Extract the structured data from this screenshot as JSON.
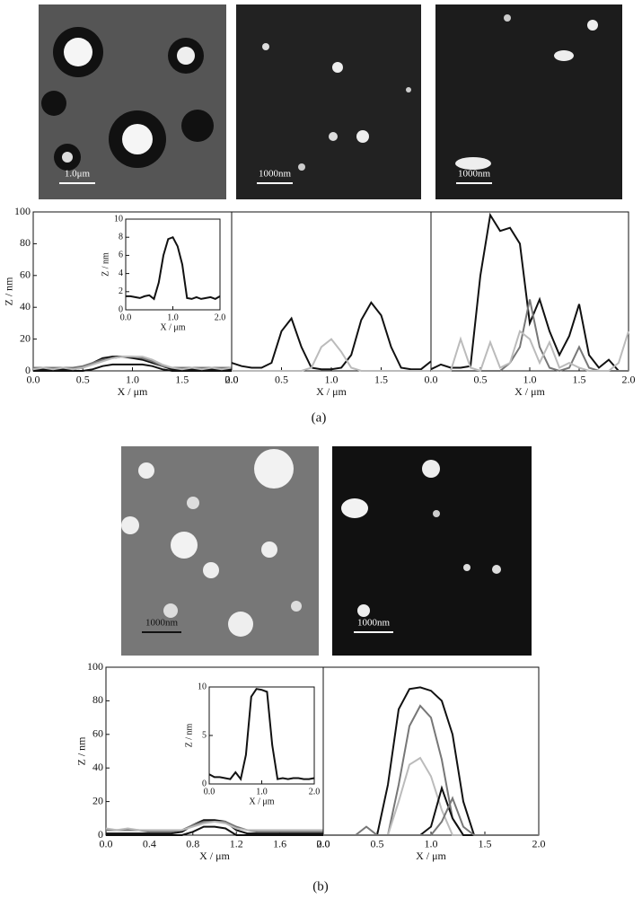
{
  "panel_labels": [
    "(a)",
    "(b)"
  ],
  "images": [
    {
      "scale_bar": "1.0μm"
    },
    {
      "scale_bar": "1000nm"
    },
    {
      "scale_bar": "1000nm"
    },
    {
      "scale_bar": "1000nm"
    },
    {
      "scale_bar": "1000nm"
    }
  ],
  "chart_data": [
    {
      "type": "line",
      "ylabel": "Z / nm",
      "xlabel": "X / μm",
      "x": [
        0,
        0.1,
        0.2,
        0.3,
        0.4,
        0.5,
        0.6,
        0.7,
        0.8,
        0.9,
        1.0,
        1.1,
        1.2,
        1.3,
        1.4,
        1.5,
        1.6,
        1.7,
        1.8,
        1.9,
        2.0
      ],
      "xlim": [
        0,
        2
      ],
      "ylim": [
        0,
        100
      ],
      "xticks": [
        {
          "value": 0,
          "label": "0.0"
        },
        0.5,
        {
          "value": 1,
          "label": "1.0"
        },
        1.5,
        {
          "value": 2,
          "label": "2.0"
        }
      ],
      "yticks": [
        0,
        20,
        40,
        60,
        80,
        100
      ],
      "series": [
        {
          "color": "#111111",
          "values": [
            1,
            1,
            1,
            1,
            1,
            2,
            5,
            8,
            9,
            9,
            8,
            7,
            5,
            3,
            1,
            1,
            1,
            1,
            1,
            1,
            1
          ]
        },
        {
          "color": "#111111",
          "values": [
            0,
            0,
            0,
            0,
            0,
            0,
            1,
            3,
            4,
            4,
            4,
            4,
            3,
            1,
            0,
            0,
            0,
            0,
            0,
            0,
            0
          ]
        },
        {
          "color": "#777777",
          "values": [
            2,
            2,
            2,
            2,
            2,
            3,
            5,
            7,
            8,
            9,
            9,
            8,
            6,
            3,
            2,
            2,
            2,
            2,
            2,
            2,
            2
          ]
        },
        {
          "color": "#bbbbbb",
          "values": [
            1,
            2,
            1,
            2,
            1,
            2,
            4,
            6,
            8,
            9,
            9,
            9,
            7,
            4,
            2,
            1,
            2,
            1,
            2,
            1,
            2
          ]
        }
      ]
    },
    {
      "type": "line",
      "ylabel": "Z / nm",
      "xlabel": "X / μm",
      "x": [
        0,
        0.1,
        0.2,
        0.3,
        0.4,
        0.5,
        0.6,
        0.7,
        0.8,
        0.9,
        1.0,
        1.1,
        1.2,
        1.3,
        1.4,
        1.5,
        1.6,
        1.7,
        1.8,
        1.9,
        2.0
      ],
      "xlim": [
        0,
        2
      ],
      "ylim": [
        0,
        10
      ],
      "xticks": [
        {
          "value": 0,
          "label": "0.0"
        },
        {
          "value": 1,
          "label": "1.0"
        },
        {
          "value": 2,
          "label": "2.0"
        }
      ],
      "yticks": [
        0,
        2,
        4,
        6,
        8,
        10
      ],
      "series": [
        {
          "color": "#111111",
          "values": [
            1.5,
            1.5,
            1.4,
            1.3,
            1.5,
            1.6,
            1.2,
            3,
            6,
            7.8,
            8,
            7,
            5,
            1.3,
            1.2,
            1.4,
            1.2,
            1.3,
            1.4,
            1.2,
            1.5
          ]
        }
      ]
    },
    {
      "type": "line",
      "xlabel": "X / μm",
      "x": [
        0,
        0.1,
        0.2,
        0.3,
        0.4,
        0.5,
        0.6,
        0.7,
        0.8,
        0.9,
        1.0,
        1.1,
        1.2,
        1.3,
        1.4,
        1.5,
        1.6,
        1.7,
        1.8,
        1.9,
        2.0
      ],
      "xlim": [
        0,
        2
      ],
      "ylim": [
        0,
        100
      ],
      "xticks": [
        {
          "value": 0,
          "label": "0.0"
        },
        0.5,
        {
          "value": 1,
          "label": "1.0"
        },
        1.5
      ],
      "series": [
        {
          "color": "#111111",
          "values": [
            5,
            3,
            2,
            2,
            5,
            25,
            33,
            15,
            2,
            1,
            1,
            2,
            10,
            32,
            43,
            35,
            15,
            2,
            1,
            1,
            6
          ]
        },
        {
          "color": "#bbbbbb",
          "values": [
            0,
            0,
            0,
            0,
            0,
            0,
            0,
            0,
            2,
            15,
            20,
            12,
            2,
            0,
            0,
            0,
            0,
            0,
            0,
            0,
            0
          ]
        }
      ]
    },
    {
      "type": "line",
      "xlabel": "X / μm",
      "x": [
        0,
        0.1,
        0.2,
        0.3,
        0.4,
        0.5,
        0.6,
        0.7,
        0.8,
        0.9,
        1.0,
        1.1,
        1.2,
        1.3,
        1.4,
        1.5,
        1.6,
        1.7,
        1.8,
        1.9,
        2.0
      ],
      "xlim": [
        0,
        2
      ],
      "ylim": [
        0,
        100
      ],
      "xticks": [
        {
          "value": 0,
          "label": "0.0"
        },
        0.5,
        {
          "value": 1,
          "label": "1.0"
        },
        1.5,
        {
          "value": 2,
          "label": "2.0"
        }
      ],
      "series": [
        {
          "color": "#111111",
          "values": [
            1,
            4,
            2,
            2,
            3,
            60,
            98,
            88,
            90,
            80,
            30,
            45,
            25,
            10,
            22,
            42,
            10,
            2,
            7,
            0,
            0
          ]
        },
        {
          "color": "#777777",
          "values": [
            0,
            0,
            0,
            0,
            0,
            0,
            0,
            0,
            5,
            15,
            45,
            15,
            2,
            0,
            2,
            15,
            2,
            0,
            0,
            0,
            0
          ]
        },
        {
          "color": "#bbbbbb",
          "values": [
            0,
            0,
            0,
            20,
            2,
            0,
            18,
            2,
            5,
            25,
            20,
            5,
            18,
            2,
            5,
            2,
            0,
            0,
            0,
            5,
            25
          ]
        }
      ]
    },
    {
      "type": "line",
      "ylabel": "Z / nm",
      "xlabel": "X / μm",
      "x": [
        0,
        0.1,
        0.2,
        0.3,
        0.4,
        0.5,
        0.6,
        0.7,
        0.8,
        0.9,
        1.0,
        1.1,
        1.2,
        1.3,
        1.4,
        1.5,
        1.6,
        1.7,
        1.8,
        1.9,
        2.0
      ],
      "xlim": [
        0,
        2
      ],
      "ylim": [
        0,
        100
      ],
      "xticks": [
        {
          "value": 0,
          "label": "0.0"
        },
        0.4,
        0.8,
        1.2,
        1.6,
        {
          "value": 2,
          "label": "2.0"
        }
      ],
      "yticks": [
        0,
        20,
        40,
        60,
        80,
        100
      ],
      "series": [
        {
          "color": "#111111",
          "values": [
            1,
            1,
            1,
            1,
            1,
            1,
            1,
            2,
            6,
            9,
            9,
            8,
            3,
            1,
            1,
            1,
            1,
            1,
            1,
            1,
            1
          ]
        },
        {
          "color": "#111111",
          "values": [
            0,
            0,
            0,
            0,
            0,
            0,
            0,
            0,
            2,
            5,
            5,
            4,
            0,
            0,
            0,
            0,
            0,
            0,
            0,
            0,
            0
          ]
        },
        {
          "color": "#777777",
          "values": [
            3,
            3,
            3,
            3,
            2,
            2,
            2,
            3,
            6,
            8,
            8,
            8,
            5,
            3,
            2,
            2,
            2,
            2,
            2,
            2,
            2
          ]
        },
        {
          "color": "#bbbbbb",
          "values": [
            4,
            3,
            4,
            3,
            3,
            3,
            3,
            3,
            5,
            7,
            8,
            7,
            4,
            3,
            3,
            3,
            3,
            3,
            3,
            3,
            3
          ]
        }
      ]
    },
    {
      "type": "line",
      "ylabel": "Z / nm",
      "xlabel": "X / μm",
      "x": [
        0,
        0.1,
        0.2,
        0.3,
        0.4,
        0.5,
        0.6,
        0.7,
        0.8,
        0.9,
        1.0,
        1.1,
        1.2,
        1.3,
        1.4,
        1.5,
        1.6,
        1.7,
        1.8,
        1.9,
        2.0
      ],
      "xlim": [
        0,
        2
      ],
      "ylim": [
        0,
        10
      ],
      "xticks": [
        {
          "value": 0,
          "label": "0.0"
        },
        {
          "value": 1,
          "label": "1.0"
        },
        {
          "value": 2,
          "label": "2.0"
        }
      ],
      "yticks": [
        0,
        5,
        10
      ],
      "series": [
        {
          "color": "#111111",
          "values": [
            1,
            0.7,
            0.7,
            0.6,
            0.5,
            1.2,
            0.5,
            3,
            9,
            9.8,
            9.7,
            9.5,
            4,
            0.5,
            0.6,
            0.5,
            0.6,
            0.6,
            0.5,
            0.5,
            0.6
          ]
        }
      ]
    },
    {
      "type": "line",
      "xlabel": "X / μm",
      "x": [
        0,
        0.1,
        0.2,
        0.3,
        0.4,
        0.5,
        0.6,
        0.7,
        0.8,
        0.9,
        1.0,
        1.1,
        1.2,
        1.3,
        1.4,
        1.5,
        1.6,
        1.7,
        1.8,
        1.9,
        2.0
      ],
      "xlim": [
        0,
        2
      ],
      "ylim": [
        0,
        100
      ],
      "xticks": [
        {
          "value": 0,
          "label": "0.0"
        },
        0.5,
        {
          "value": 1,
          "label": "1.0"
        },
        1.5,
        {
          "value": 2,
          "label": "2.0"
        }
      ],
      "series": [
        {
          "color": "#111111",
          "values": [
            0,
            0,
            0,
            0,
            0,
            0,
            30,
            75,
            87,
            88,
            86,
            80,
            60,
            20,
            0,
            0,
            0,
            0,
            0,
            0,
            0
          ]
        },
        {
          "color": "#777777",
          "values": [
            0,
            0,
            0,
            0,
            5,
            0,
            0,
            30,
            65,
            77,
            70,
            45,
            10,
            0,
            0,
            0,
            0,
            0,
            0,
            0,
            0
          ]
        },
        {
          "color": "#bbbbbb",
          "values": [
            0,
            0,
            0,
            0,
            0,
            0,
            0,
            20,
            42,
            46,
            35,
            15,
            0,
            0,
            0,
            0,
            0,
            0,
            0,
            0,
            0
          ]
        },
        {
          "color": "#111111",
          "values": [
            0,
            0,
            0,
            0,
            0,
            0,
            0,
            0,
            0,
            0,
            5,
            28,
            10,
            0,
            0,
            0,
            0,
            0,
            0,
            0,
            0
          ]
        },
        {
          "color": "#777777",
          "values": [
            0,
            0,
            0,
            0,
            0,
            0,
            0,
            0,
            0,
            0,
            0,
            8,
            22,
            5,
            0,
            0,
            0,
            0,
            0,
            0,
            0
          ]
        }
      ]
    }
  ]
}
